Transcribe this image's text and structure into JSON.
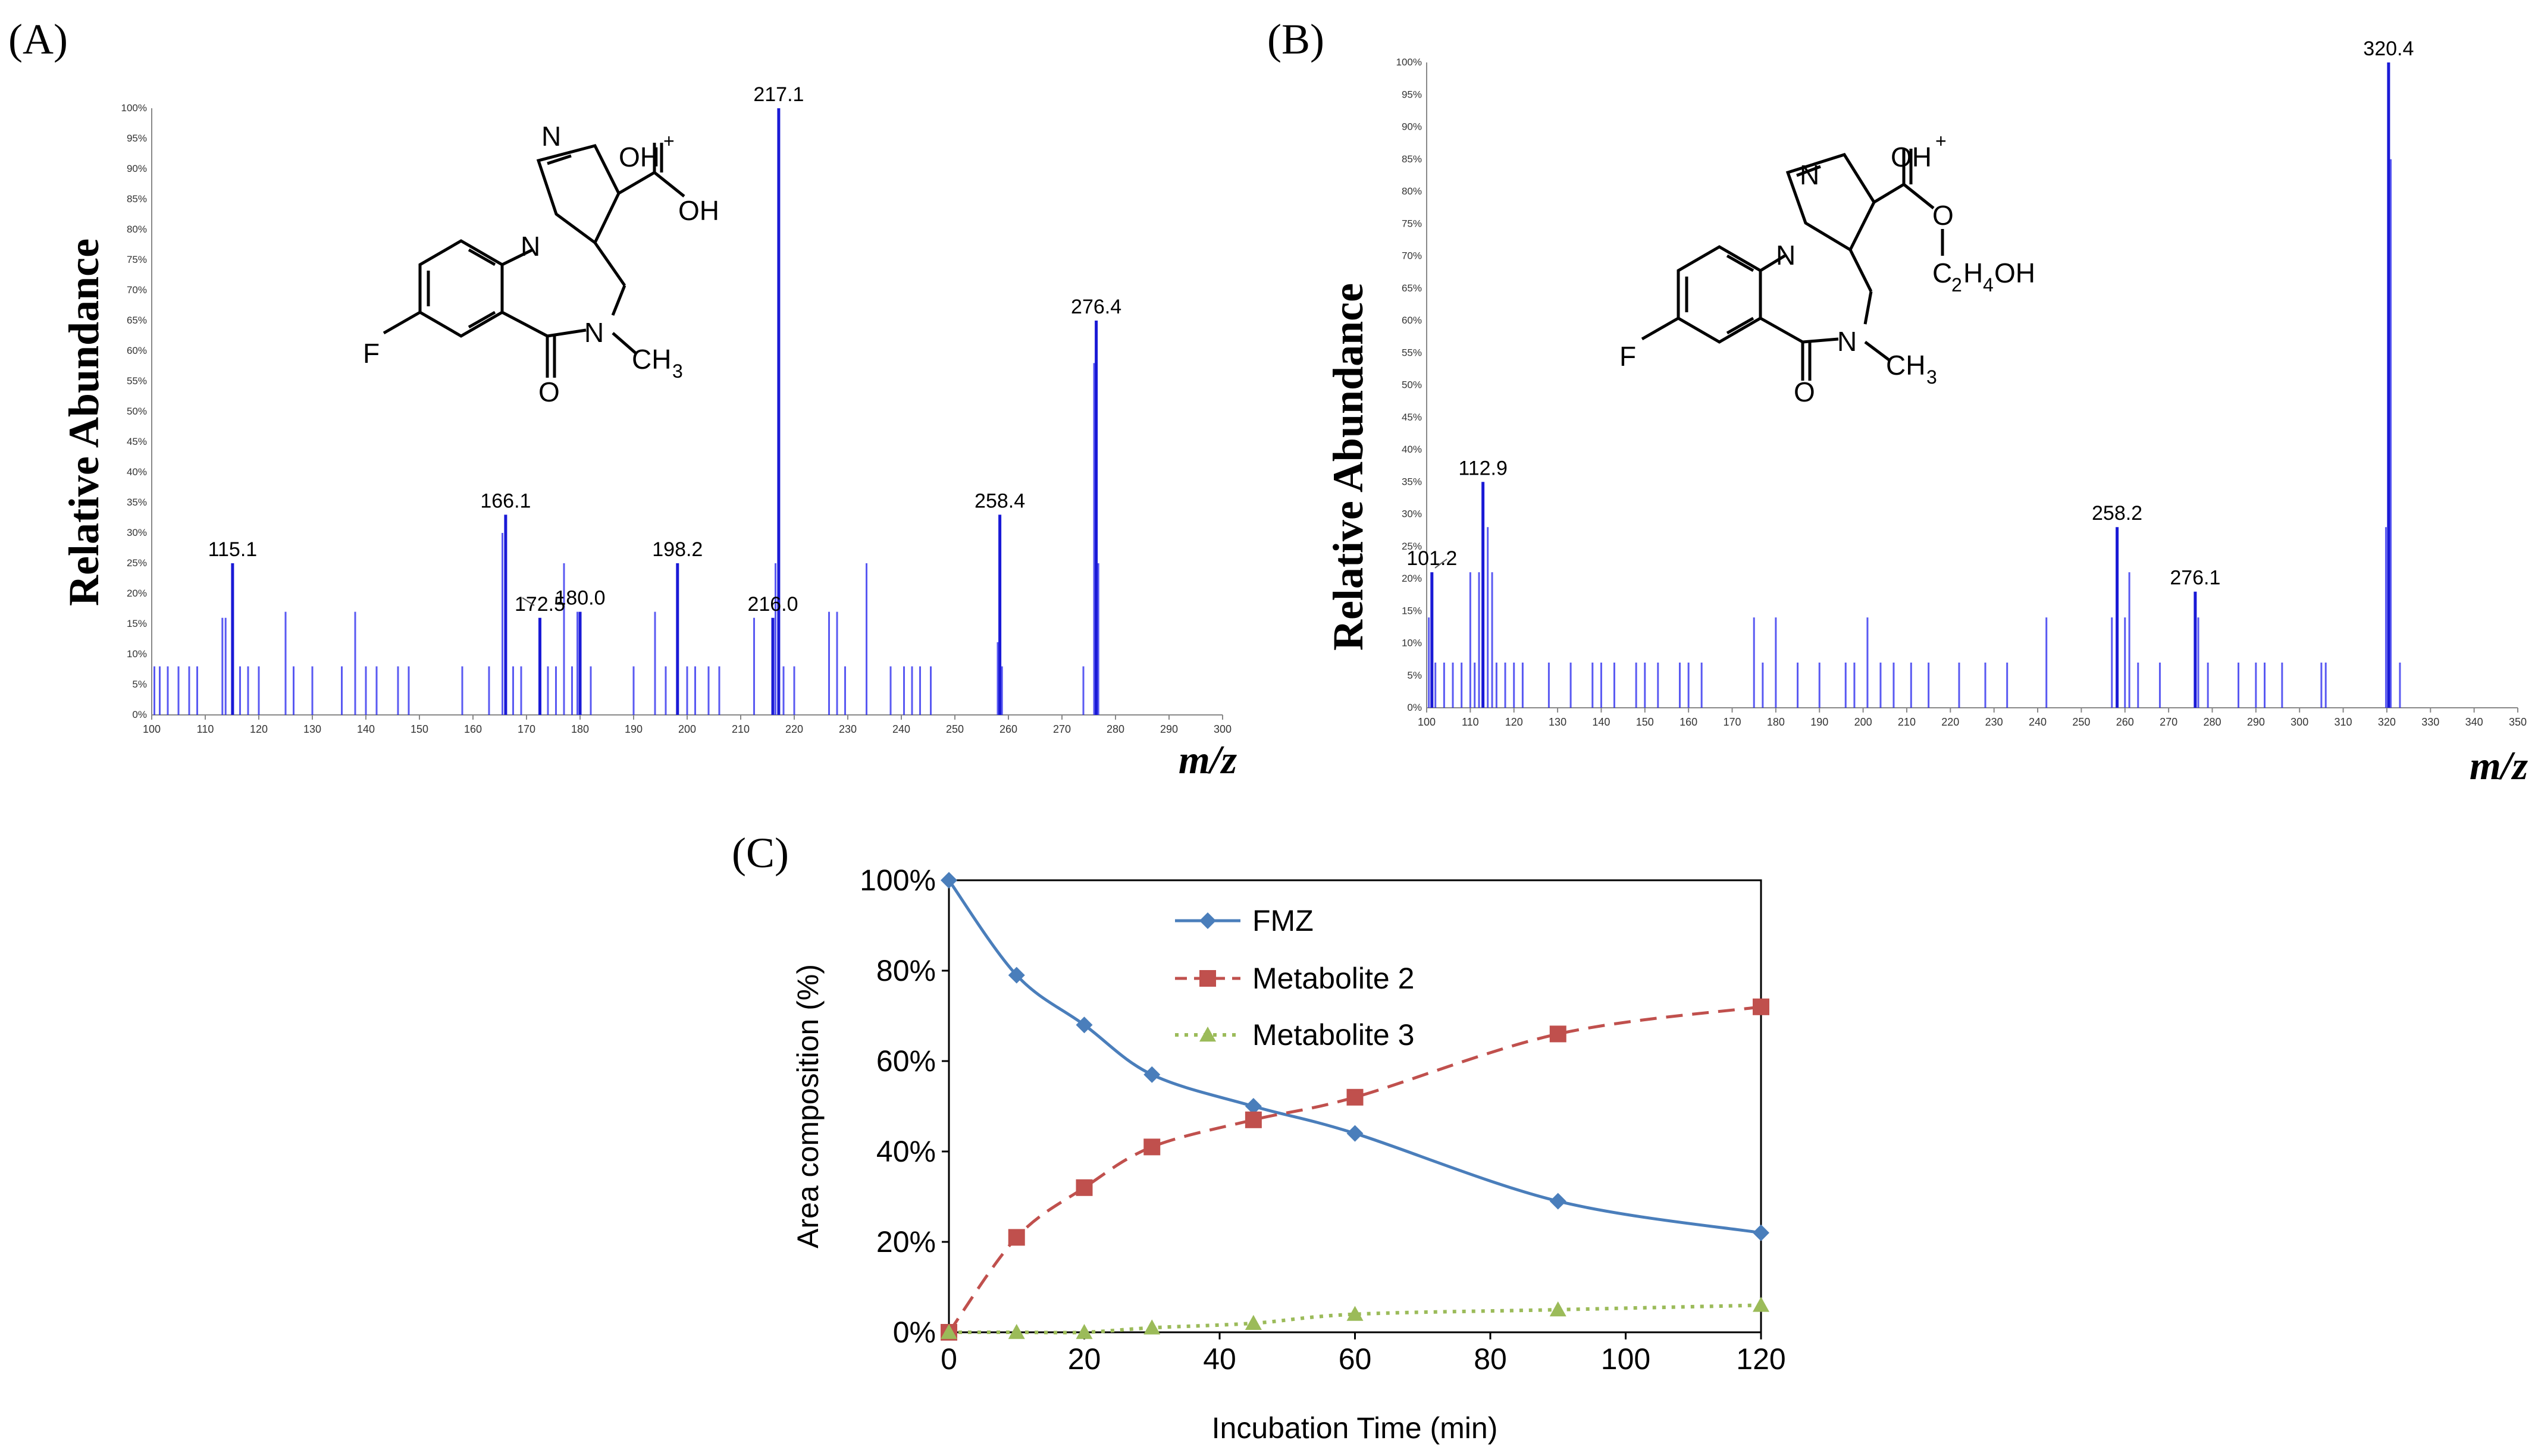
{
  "panels": {
    "a": {
      "label": "(A)"
    },
    "b": {
      "label": "(B)"
    },
    "c": {
      "label": "(C)"
    }
  },
  "chart_data": [
    {
      "id": "spectrum_a",
      "type": "bar",
      "subtype": "mass-spectrum",
      "title": "",
      "xlabel": "m/z",
      "ylabel": "Relative Abundance",
      "xlim": [
        100,
        300
      ],
      "ylim": [
        0,
        100
      ],
      "xticks": [
        100,
        110,
        120,
        130,
        140,
        150,
        160,
        170,
        180,
        190,
        200,
        210,
        220,
        230,
        240,
        250,
        260,
        270,
        280,
        290,
        300
      ],
      "yticks": [
        "0%",
        "5%",
        "10%",
        "15%",
        "20%",
        "25%",
        "30%",
        "35%",
        "40%",
        "45%",
        "50%",
        "55%",
        "60%",
        "65%",
        "70%",
        "75%",
        "80%",
        "85%",
        "90%",
        "95%",
        "100%"
      ],
      "peaks": [
        {
          "mz": 217.1,
          "rel": 100,
          "label": "217.1"
        },
        {
          "mz": 276.4,
          "rel": 65,
          "label": "276.4"
        },
        {
          "mz": 166.1,
          "rel": 33,
          "label": "166.1"
        },
        {
          "mz": 258.4,
          "rel": 33,
          "label": "258.4"
        },
        {
          "mz": 198.2,
          "rel": 25,
          "label": "198.2"
        },
        {
          "mz": 115.1,
          "rel": 25,
          "label": "115.1"
        },
        {
          "mz": 172.5,
          "rel": 16,
          "label": "172.5"
        },
        {
          "mz": 180.0,
          "rel": 17,
          "label": "180.0"
        },
        {
          "mz": 216.0,
          "rel": 16,
          "label": "216.0"
        }
      ],
      "minor_peaks": [
        {
          "mz": 100.5,
          "rel": 8
        },
        {
          "mz": 101.5,
          "rel": 8
        },
        {
          "mz": 103,
          "rel": 8
        },
        {
          "mz": 105,
          "rel": 8
        },
        {
          "mz": 107,
          "rel": 8
        },
        {
          "mz": 108.5,
          "rel": 8
        },
        {
          "mz": 113.2,
          "rel": 16
        },
        {
          "mz": 113.8,
          "rel": 16
        },
        {
          "mz": 116.5,
          "rel": 8
        },
        {
          "mz": 118,
          "rel": 8
        },
        {
          "mz": 120,
          "rel": 8
        },
        {
          "mz": 125,
          "rel": 17
        },
        {
          "mz": 126.5,
          "rel": 8
        },
        {
          "mz": 130,
          "rel": 8
        },
        {
          "mz": 135.5,
          "rel": 8
        },
        {
          "mz": 138,
          "rel": 17
        },
        {
          "mz": 140,
          "rel": 8
        },
        {
          "mz": 142,
          "rel": 8
        },
        {
          "mz": 146,
          "rel": 8
        },
        {
          "mz": 148,
          "rel": 8
        },
        {
          "mz": 158,
          "rel": 8
        },
        {
          "mz": 163,
          "rel": 8
        },
        {
          "mz": 165.5,
          "rel": 30
        },
        {
          "mz": 167.5,
          "rel": 8
        },
        {
          "mz": 169,
          "rel": 8
        },
        {
          "mz": 174,
          "rel": 8
        },
        {
          "mz": 175.5,
          "rel": 8
        },
        {
          "mz": 177,
          "rel": 25
        },
        {
          "mz": 178.5,
          "rel": 8
        },
        {
          "mz": 179.5,
          "rel": 17
        },
        {
          "mz": 182,
          "rel": 8
        },
        {
          "mz": 190,
          "rel": 8
        },
        {
          "mz": 194,
          "rel": 17
        },
        {
          "mz": 196,
          "rel": 8
        },
        {
          "mz": 200,
          "rel": 8
        },
        {
          "mz": 201.5,
          "rel": 8
        },
        {
          "mz": 204,
          "rel": 8
        },
        {
          "mz": 206,
          "rel": 8
        },
        {
          "mz": 212.5,
          "rel": 16
        },
        {
          "mz": 216.5,
          "rel": 25
        },
        {
          "mz": 218,
          "rel": 8
        },
        {
          "mz": 220,
          "rel": 8
        },
        {
          "mz": 226.5,
          "rel": 17
        },
        {
          "mz": 228,
          "rel": 17
        },
        {
          "mz": 229.5,
          "rel": 8
        },
        {
          "mz": 233.5,
          "rel": 25
        },
        {
          "mz": 238,
          "rel": 8
        },
        {
          "mz": 240.5,
          "rel": 8
        },
        {
          "mz": 242,
          "rel": 8
        },
        {
          "mz": 243.5,
          "rel": 8
        },
        {
          "mz": 245.5,
          "rel": 8
        },
        {
          "mz": 258,
          "rel": 12
        },
        {
          "mz": 258.8,
          "rel": 8
        },
        {
          "mz": 276,
          "rel": 58
        },
        {
          "mz": 276.8,
          "rel": 25
        },
        {
          "mz": 274,
          "rel": 8
        }
      ]
    },
    {
      "id": "spectrum_b",
      "type": "bar",
      "subtype": "mass-spectrum",
      "title": "",
      "xlabel": "m/z",
      "ylabel": "Relative Abundance",
      "xlim": [
        100,
        350
      ],
      "ylim": [
        0,
        100
      ],
      "xticks": [
        100,
        110,
        120,
        130,
        140,
        150,
        160,
        170,
        180,
        190,
        200,
        210,
        220,
        230,
        240,
        250,
        260,
        270,
        280,
        290,
        300,
        310,
        320,
        330,
        340,
        350
      ],
      "yticks": [
        "0%",
        "5%",
        "10%",
        "15%",
        "20%",
        "25%",
        "30%",
        "35%",
        "40%",
        "45%",
        "50%",
        "55%",
        "60%",
        "65%",
        "70%",
        "75%",
        "80%",
        "85%",
        "90%",
        "95%",
        "100%"
      ],
      "peaks": [
        {
          "mz": 320.4,
          "rel": 100,
          "label": "320.4"
        },
        {
          "mz": 112.9,
          "rel": 35,
          "label": "112.9"
        },
        {
          "mz": 258.2,
          "rel": 28,
          "label": "258.2"
        },
        {
          "mz": 101.2,
          "rel": 21,
          "label": "101.2"
        },
        {
          "mz": 276.1,
          "rel": 18,
          "label": "276.1"
        }
      ],
      "minor_peaks": [
        {
          "mz": 100.5,
          "rel": 14
        },
        {
          "mz": 102,
          "rel": 7
        },
        {
          "mz": 104,
          "rel": 7
        },
        {
          "mz": 106,
          "rel": 7
        },
        {
          "mz": 108,
          "rel": 7
        },
        {
          "mz": 110,
          "rel": 21
        },
        {
          "mz": 111,
          "rel": 7
        },
        {
          "mz": 112,
          "rel": 21
        },
        {
          "mz": 114,
          "rel": 28
        },
        {
          "mz": 115,
          "rel": 21
        },
        {
          "mz": 116,
          "rel": 7
        },
        {
          "mz": 118,
          "rel": 7
        },
        {
          "mz": 120,
          "rel": 7
        },
        {
          "mz": 122,
          "rel": 7
        },
        {
          "mz": 128,
          "rel": 7
        },
        {
          "mz": 133,
          "rel": 7
        },
        {
          "mz": 138,
          "rel": 7
        },
        {
          "mz": 140,
          "rel": 7
        },
        {
          "mz": 143,
          "rel": 7
        },
        {
          "mz": 148,
          "rel": 7
        },
        {
          "mz": 150,
          "rel": 7
        },
        {
          "mz": 153,
          "rel": 7
        },
        {
          "mz": 158,
          "rel": 7
        },
        {
          "mz": 160,
          "rel": 7
        },
        {
          "mz": 163,
          "rel": 7
        },
        {
          "mz": 175,
          "rel": 14
        },
        {
          "mz": 177,
          "rel": 7
        },
        {
          "mz": 180,
          "rel": 14
        },
        {
          "mz": 185,
          "rel": 7
        },
        {
          "mz": 190,
          "rel": 7
        },
        {
          "mz": 196,
          "rel": 7
        },
        {
          "mz": 198,
          "rel": 7
        },
        {
          "mz": 201,
          "rel": 14
        },
        {
          "mz": 204,
          "rel": 7
        },
        {
          "mz": 207,
          "rel": 7
        },
        {
          "mz": 211,
          "rel": 7
        },
        {
          "mz": 215,
          "rel": 7
        },
        {
          "mz": 222,
          "rel": 7
        },
        {
          "mz": 228,
          "rel": 7
        },
        {
          "mz": 233,
          "rel": 7
        },
        {
          "mz": 242,
          "rel": 14
        },
        {
          "mz": 257,
          "rel": 14
        },
        {
          "mz": 260,
          "rel": 14
        },
        {
          "mz": 261,
          "rel": 21
        },
        {
          "mz": 263,
          "rel": 7
        },
        {
          "mz": 268,
          "rel": 7
        },
        {
          "mz": 276.8,
          "rel": 14
        },
        {
          "mz": 279,
          "rel": 7
        },
        {
          "mz": 286,
          "rel": 7
        },
        {
          "mz": 290,
          "rel": 7
        },
        {
          "mz": 292,
          "rel": 7
        },
        {
          "mz": 296,
          "rel": 7
        },
        {
          "mz": 305,
          "rel": 7
        },
        {
          "mz": 306,
          "rel": 7
        },
        {
          "mz": 319.8,
          "rel": 28
        },
        {
          "mz": 320.9,
          "rel": 85
        },
        {
          "mz": 323,
          "rel": 7
        }
      ]
    },
    {
      "id": "timecourse_c",
      "type": "line",
      "title": "",
      "xlabel": "Incubation Time (min)",
      "ylabel": "Area composition (%)",
      "xlim": [
        0,
        120
      ],
      "ylim": [
        0,
        100
      ],
      "xticks": [
        "0",
        "20",
        "40",
        "60",
        "80",
        "100",
        "120"
      ],
      "yticks": [
        "0%",
        "20%",
        "40%",
        "60%",
        "80%",
        "100%"
      ],
      "x": [
        0,
        10,
        20,
        30,
        45,
        60,
        90,
        120
      ],
      "series": [
        {
          "name": "FMZ",
          "color": "#4a7ebb",
          "marker": "diamond",
          "style": "solid",
          "values": [
            100,
            79,
            68,
            57,
            50,
            44,
            29,
            22
          ]
        },
        {
          "name": "Metabolite 2",
          "color": "#c0504d",
          "marker": "square",
          "style": "dashed",
          "values": [
            0,
            21,
            32,
            41,
            47,
            52,
            66,
            72
          ]
        },
        {
          "name": "Metabolite 3",
          "color": "#9bbb59",
          "marker": "triangle",
          "style": "dotted",
          "values": [
            0,
            0,
            0,
            1,
            2,
            4,
            5,
            6
          ]
        }
      ]
    }
  ],
  "structures": {
    "a": {
      "oh_plus": "OH",
      "oh": "OH",
      "n_top": "N",
      "n_ring": "N",
      "n_methyl": "N",
      "f": "F",
      "o": "O",
      "ch3": "CH",
      "ch3_sub": "3",
      "plus": "+"
    },
    "b": {
      "oh_plus": "OH",
      "ester_o": "O",
      "ester_chain": "C",
      "sub2": "2",
      "h": "H",
      "sub4": "4",
      "oh_tail": "OH",
      "n_top": "N",
      "n_ring": "N",
      "n_methyl": "N",
      "f": "F",
      "o": "O",
      "ch3": "CH",
      "ch3_sub": "3",
      "plus": "+"
    }
  }
}
